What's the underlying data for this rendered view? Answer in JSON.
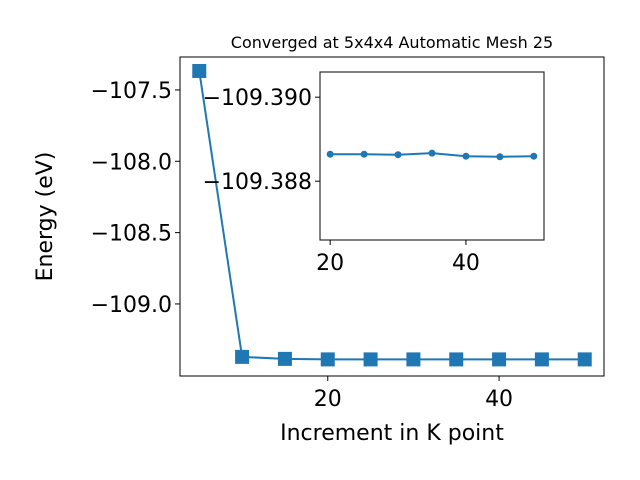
{
  "chart_data": [
    {
      "type": "line",
      "title": "Converged at 5x4x4 Automatic Mesh 25",
      "xlabel": "Increment in K point",
      "ylabel": "Energy (eV)",
      "x": [
        5,
        10,
        15,
        20,
        25,
        30,
        35,
        40,
        45,
        50
      ],
      "series": [
        {
          "color": "#1f77b4",
          "marker": "square",
          "values": [
            -107.367,
            -109.371,
            -109.385,
            -109.3886,
            -109.3886,
            -109.3886,
            -109.3887,
            -109.3886,
            -109.3886,
            -109.3886
          ]
        }
      ],
      "xlim": [
        2.75,
        52.25
      ],
      "ylim": [
        -109.505,
        -107.269
      ],
      "xticks": [
        20,
        40
      ],
      "yticks": [
        {
          "value": -109.0,
          "label": "−109.0"
        },
        {
          "value": -108.5,
          "label": "−108.5"
        },
        {
          "value": -108.0,
          "label": "−108.0"
        },
        {
          "value": -107.5,
          "label": "−107.5"
        }
      ]
    },
    {
      "type": "line",
      "x": [
        20,
        25,
        30,
        35,
        40,
        45,
        50
      ],
      "series": [
        {
          "color": "#1f77b4",
          "marker": "circle",
          "values": [
            -109.388643,
            -109.388643,
            -109.388631,
            -109.388667,
            -109.388595,
            -109.388583,
            -109.388595
          ]
        }
      ],
      "xlim": [
        18.5,
        51.5
      ],
      "ylim": [
        -109.3866,
        -109.3906
      ],
      "xticks": [
        20,
        40
      ],
      "yticks": [
        {
          "value": -109.39,
          "label": "−109.390"
        },
        {
          "value": -109.388,
          "label": "−109.388"
        }
      ]
    }
  ]
}
